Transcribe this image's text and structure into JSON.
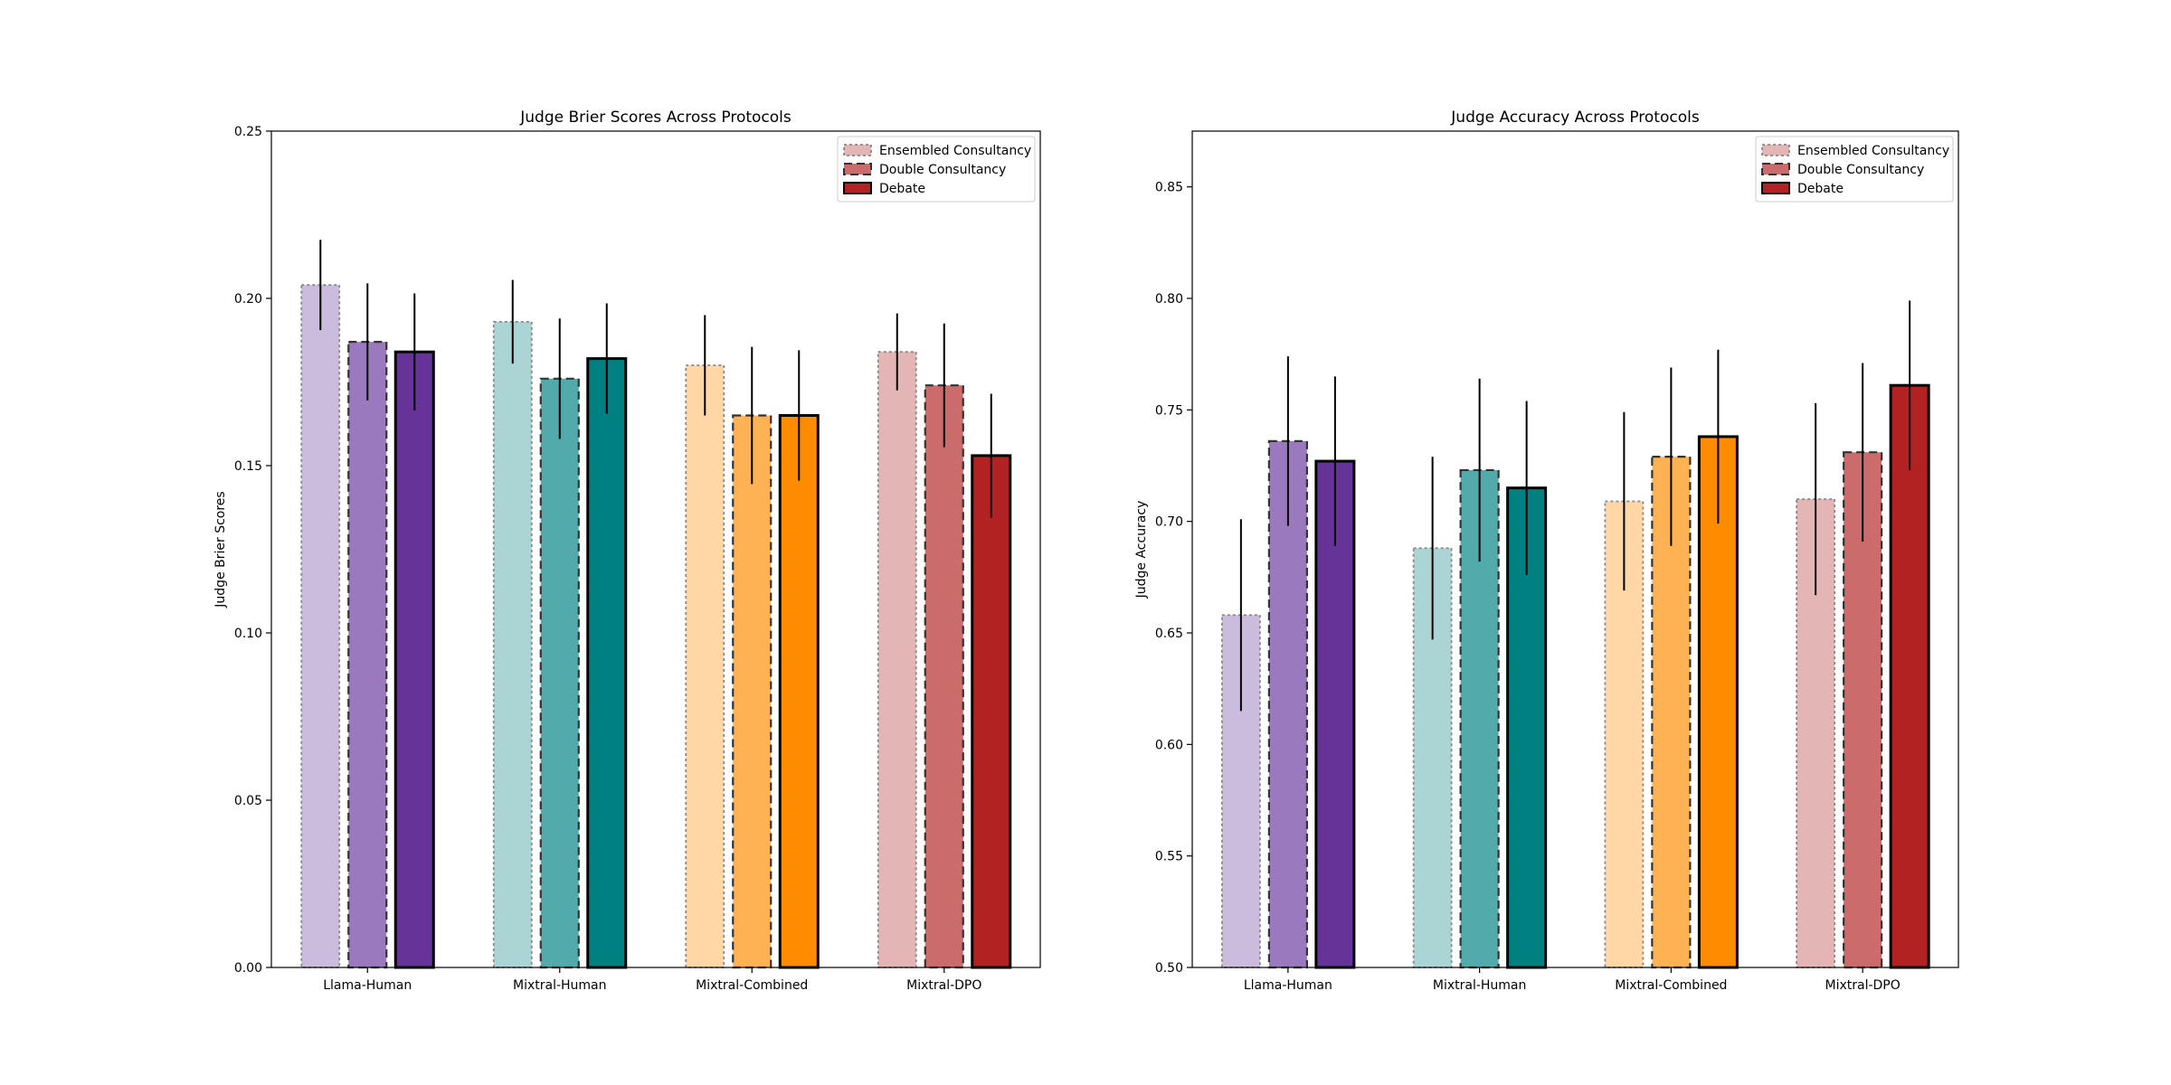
{
  "chart_data": [
    {
      "type": "bar",
      "title": "Judge Brier Scores Across Protocols",
      "xlabel": "",
      "ylabel": "Judge Brier Scores",
      "ylim": [
        0,
        0.25
      ],
      "yticks": [
        "0.00",
        "0.05",
        "0.10",
        "0.15",
        "0.20",
        "0.25"
      ],
      "grid": false,
      "legend_position": "top-right",
      "categories": [
        "Llama-Human",
        "Mixtral-Human",
        "Mixtral-Combined",
        "Mixtral-DPO"
      ],
      "series": [
        {
          "name": "Ensembled Consultancy",
          "values": [
            0.204,
            0.193,
            0.18,
            0.184
          ],
          "errors": [
            0.0135,
            0.0125,
            0.015,
            0.0115
          ]
        },
        {
          "name": "Double Consultancy",
          "values": [
            0.187,
            0.176,
            0.165,
            0.174
          ],
          "errors": [
            0.0175,
            0.018,
            0.0205,
            0.0185
          ]
        },
        {
          "name": "Debate",
          "values": [
            0.184,
            0.182,
            0.165,
            0.153
          ],
          "errors": [
            0.0175,
            0.0165,
            0.0195,
            0.0185
          ]
        }
      ],
      "colors": {
        "Llama-Human": [
          "#cbbbdd",
          "#9b79bf",
          "#663399"
        ],
        "Mixtral-Human": [
          "#abd5d5",
          "#53aaaa",
          "#008080"
        ],
        "Mixtral-Combined": [
          "#ffd6a6",
          "#ffb254",
          "#ff8c00"
        ],
        "Mixtral-DPO": [
          "#e4b5b5",
          "#cc6b6b",
          "#b22222"
        ]
      },
      "legend_colors": [
        "#e4b5b5",
        "#cc6b6b",
        "#b22222"
      ]
    },
    {
      "type": "bar",
      "title": "Judge Accuracy Across Protocols",
      "xlabel": "",
      "ylabel": "Judge Accuracy",
      "ylim": [
        0.5,
        0.875
      ],
      "yticks": [
        "0.50",
        "0.55",
        "0.60",
        "0.65",
        "0.70",
        "0.75",
        "0.80",
        "0.85"
      ],
      "grid": false,
      "legend_position": "top-right",
      "categories": [
        "Llama-Human",
        "Mixtral-Human",
        "Mixtral-Combined",
        "Mixtral-DPO"
      ],
      "series": [
        {
          "name": "Ensembled Consultancy",
          "values": [
            0.658,
            0.688,
            0.709,
            0.71
          ],
          "errors": [
            0.043,
            0.041,
            0.04,
            0.043
          ]
        },
        {
          "name": "Double Consultancy",
          "values": [
            0.736,
            0.723,
            0.729,
            0.731
          ],
          "errors": [
            0.038,
            0.041,
            0.04,
            0.04
          ]
        },
        {
          "name": "Debate",
          "values": [
            0.727,
            0.715,
            0.738,
            0.761
          ],
          "errors": [
            0.038,
            0.039,
            0.039,
            0.038
          ]
        }
      ],
      "colors": {
        "Llama-Human": [
          "#cbbbdd",
          "#9b79bf",
          "#663399"
        ],
        "Mixtral-Human": [
          "#abd5d5",
          "#53aaaa",
          "#008080"
        ],
        "Mixtral-Combined": [
          "#ffd6a6",
          "#ffb254",
          "#ff8c00"
        ],
        "Mixtral-DPO": [
          "#e4b5b5",
          "#cc6b6b",
          "#b22222"
        ]
      },
      "legend_colors": [
        "#e4b5b5",
        "#cc6b6b",
        "#b22222"
      ]
    }
  ]
}
